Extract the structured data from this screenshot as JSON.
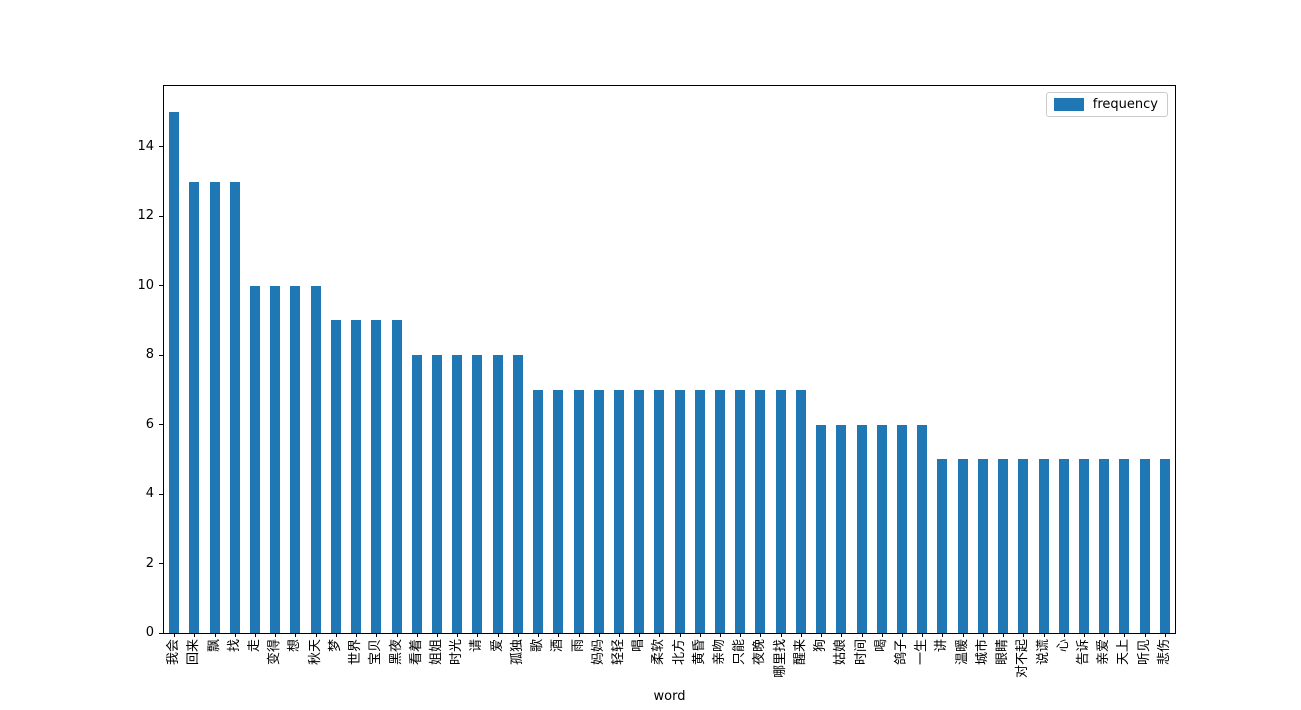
{
  "chart_data": {
    "type": "bar",
    "title": "",
    "xlabel": "word",
    "ylabel": "",
    "legend": [
      "frequency"
    ],
    "legend_position": "upper right",
    "bar_color": "#1f77b4",
    "grid": false,
    "ylim": [
      0,
      15.75
    ],
    "yticks": [
      0,
      2,
      4,
      6,
      8,
      10,
      12,
      14
    ],
    "categories": [
      "我会",
      "回来",
      "飘",
      "找",
      "走",
      "变得",
      "想",
      "秋天",
      "梦",
      "世界",
      "宝贝",
      "黑夜",
      "看着",
      "姐姐",
      "时光",
      "请",
      "爱",
      "孤独",
      "歌",
      "酒",
      "雨",
      "妈妈",
      "轻轻",
      "唱",
      "柔软",
      "北方",
      "黄昏",
      "亲吻",
      "只能",
      "夜晚",
      "哪里找",
      "醒来",
      "狗",
      "姑娘",
      "时间",
      "喝",
      "鸽子",
      "一生",
      "讲",
      "温暖",
      "城市",
      "眼睛",
      "对不起",
      "说谎",
      "心",
      "告诉",
      "亲爱",
      "天上",
      "听见",
      "悲伤"
    ],
    "values": [
      15,
      13,
      13,
      13,
      10,
      10,
      10,
      10,
      9,
      9,
      9,
      9,
      8,
      8,
      8,
      8,
      8,
      8,
      7,
      7,
      7,
      7,
      7,
      7,
      7,
      7,
      7,
      7,
      7,
      7,
      7,
      7,
      6,
      6,
      6,
      6,
      6,
      6,
      5,
      5,
      5,
      5,
      5,
      5,
      5,
      5,
      5,
      5,
      5,
      5
    ]
  }
}
